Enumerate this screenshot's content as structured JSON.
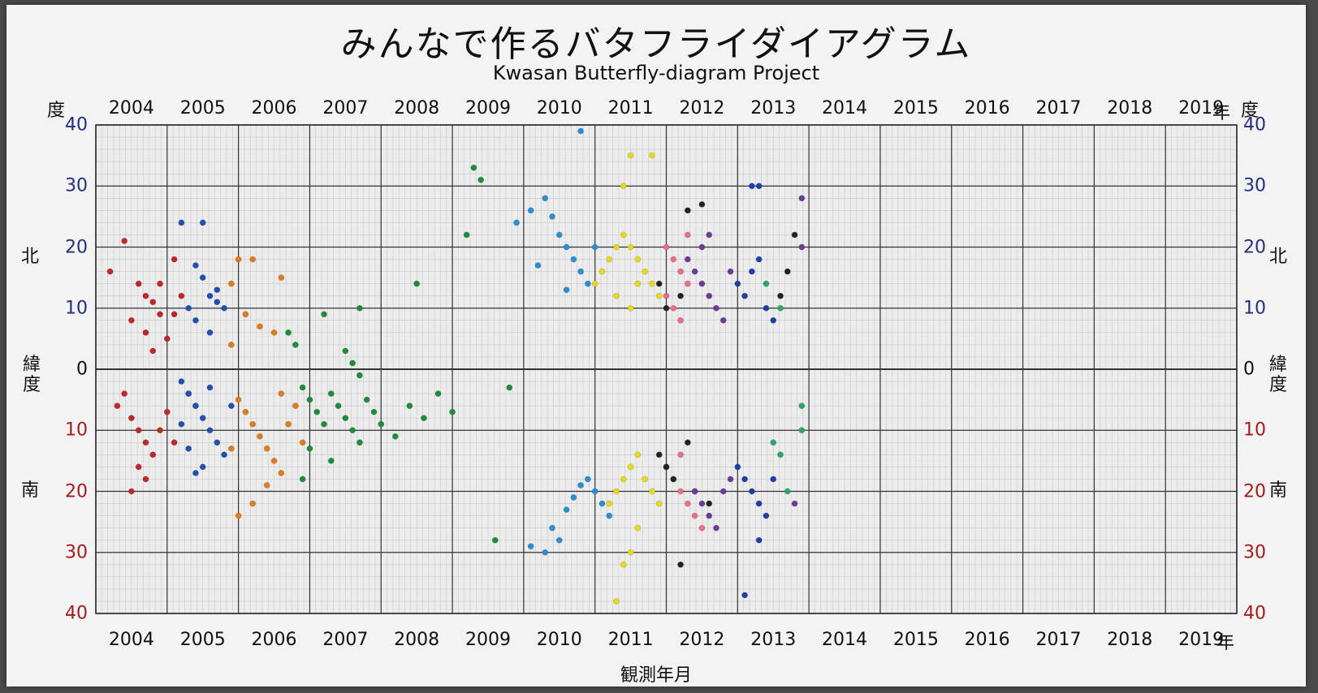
{
  "title_ja": "みんなで作るバタフライダイアグラム",
  "title_en": "Kwasan Butterfly-diagram Project",
  "years": [
    "2004",
    "2005",
    "2006",
    "2007",
    "2008",
    "2009",
    "2010",
    "2011",
    "2012",
    "2013",
    "2014",
    "2015",
    "2016",
    "2017",
    "2018",
    "2019"
  ],
  "year_suffix": "年",
  "lat_ticks": [
    "40",
    "30",
    "20",
    "10",
    "0",
    "10",
    "20",
    "30",
    "40"
  ],
  "labels": {
    "degree": "度",
    "north": "北",
    "south": "南",
    "latitude_1": "緯",
    "latitude_2": "度",
    "xlabel": "観測年月"
  },
  "colors": {
    "board": "#f3f3f3",
    "grid_minor": "#c9c9c9",
    "grid_major": "#333333",
    "north_text": "#25307a",
    "south_text": "#a31c1c"
  },
  "chart_data": {
    "type": "scatter",
    "x_unit": "year (decimal)",
    "y_unit": "solar latitude (degrees, north positive)",
    "xlim": [
      2004,
      2020
    ],
    "ylim": [
      -40,
      40
    ],
    "xlabel": "観測年月",
    "series": [
      {
        "color": "#c0262b",
        "points": [
          [
            2004.2,
            16
          ],
          [
            2004.4,
            21
          ],
          [
            2004.6,
            14
          ],
          [
            2004.7,
            12
          ],
          [
            2004.8,
            11
          ],
          [
            2004.9,
            9
          ],
          [
            2004.5,
            8
          ],
          [
            2004.7,
            6
          ],
          [
            2005.0,
            5
          ],
          [
            2005.1,
            9
          ],
          [
            2004.3,
            -6
          ],
          [
            2004.5,
            -8
          ],
          [
            2004.6,
            -10
          ],
          [
            2004.7,
            -12
          ],
          [
            2004.8,
            -14
          ],
          [
            2004.6,
            -16
          ],
          [
            2004.7,
            -18
          ],
          [
            2004.5,
            -20
          ],
          [
            2004.9,
            -10
          ],
          [
            2005.0,
            -7
          ],
          [
            2005.1,
            -12
          ],
          [
            2004.4,
            -4
          ],
          [
            2004.9,
            14
          ],
          [
            2005.1,
            18
          ],
          [
            2005.2,
            12
          ],
          [
            2004.8,
            3
          ],
          [
            2005.3,
            -4
          ],
          [
            2005.4,
            -6
          ]
        ]
      },
      {
        "color": "#2150b0",
        "points": [
          [
            2005.2,
            24
          ],
          [
            2005.5,
            24
          ],
          [
            2005.4,
            17
          ],
          [
            2005.5,
            15
          ],
          [
            2005.6,
            12
          ],
          [
            2005.7,
            11
          ],
          [
            2005.8,
            10
          ],
          [
            2005.3,
            10
          ],
          [
            2005.4,
            8
          ],
          [
            2005.6,
            6
          ],
          [
            2005.7,
            13
          ],
          [
            2005.2,
            -2
          ],
          [
            2005.3,
            -4
          ],
          [
            2005.4,
            -6
          ],
          [
            2005.5,
            -8
          ],
          [
            2005.6,
            -10
          ],
          [
            2005.7,
            -12
          ],
          [
            2005.8,
            -14
          ],
          [
            2005.5,
            -16
          ],
          [
            2005.2,
            -9
          ],
          [
            2005.9,
            -6
          ],
          [
            2005.3,
            -13
          ],
          [
            2005.6,
            -3
          ],
          [
            2005.4,
            -17
          ]
        ]
      },
      {
        "color": "#e07c1c",
        "points": [
          [
            2006.0,
            18
          ],
          [
            2006.2,
            18
          ],
          [
            2005.9,
            14
          ],
          [
            2006.1,
            9
          ],
          [
            2006.3,
            7
          ],
          [
            2006.5,
            6
          ],
          [
            2006.6,
            15
          ],
          [
            2005.9,
            4
          ],
          [
            2006.0,
            -5
          ],
          [
            2006.1,
            -7
          ],
          [
            2006.2,
            -9
          ],
          [
            2006.3,
            -11
          ],
          [
            2006.4,
            -13
          ],
          [
            2006.5,
            -15
          ],
          [
            2006.6,
            -17
          ],
          [
            2006.2,
            -22
          ],
          [
            2006.0,
            -24
          ],
          [
            2006.7,
            -9
          ],
          [
            2006.8,
            -6
          ],
          [
            2006.9,
            -12
          ],
          [
            2006.4,
            -19
          ],
          [
            2005.9,
            -13
          ],
          [
            2006.6,
            -4
          ]
        ]
      },
      {
        "color": "#1e8c3a",
        "points": [
          [
            2006.7,
            6
          ],
          [
            2006.8,
            4
          ],
          [
            2007.2,
            9
          ],
          [
            2007.5,
            3
          ],
          [
            2007.7,
            10
          ],
          [
            2008.5,
            14
          ],
          [
            2009.3,
            33
          ],
          [
            2009.4,
            31
          ],
          [
            2009.2,
            22
          ],
          [
            2006.9,
            -3
          ],
          [
            2007.0,
            -5
          ],
          [
            2007.1,
            -7
          ],
          [
            2007.2,
            -9
          ],
          [
            2007.3,
            -4
          ],
          [
            2007.4,
            -6
          ],
          [
            2007.5,
            -8
          ],
          [
            2007.6,
            -10
          ],
          [
            2007.7,
            -12
          ],
          [
            2007.8,
            -5
          ],
          [
            2007.9,
            -7
          ],
          [
            2008.0,
            -9
          ],
          [
            2008.2,
            -11
          ],
          [
            2008.4,
            -6
          ],
          [
            2008.6,
            -8
          ],
          [
            2008.8,
            -4
          ],
          [
            2009.0,
            -7
          ],
          [
            2007.3,
            -15
          ],
          [
            2007.0,
            -13
          ],
          [
            2006.9,
            -18
          ],
          [
            2009.6,
            -28
          ],
          [
            2009.8,
            -3
          ],
          [
            2007.6,
            1
          ],
          [
            2007.7,
            -1
          ]
        ]
      },
      {
        "color": "#2b8fd0",
        "points": [
          [
            2009.9,
            24
          ],
          [
            2010.1,
            26
          ],
          [
            2010.3,
            28
          ],
          [
            2010.4,
            25
          ],
          [
            2010.5,
            22
          ],
          [
            2010.6,
            20
          ],
          [
            2010.7,
            18
          ],
          [
            2010.8,
            16
          ],
          [
            2010.9,
            14
          ],
          [
            2011.0,
            20
          ],
          [
            2010.2,
            17
          ],
          [
            2010.6,
            13
          ],
          [
            2010.8,
            39
          ],
          [
            2010.4,
            -26
          ],
          [
            2010.6,
            -23
          ],
          [
            2010.7,
            -21
          ],
          [
            2010.8,
            -19
          ],
          [
            2010.9,
            -18
          ],
          [
            2011.0,
            -20
          ],
          [
            2011.1,
            -22
          ],
          [
            2011.2,
            -24
          ],
          [
            2010.3,
            -30
          ],
          [
            2010.1,
            -29
          ],
          [
            2010.5,
            -28
          ]
        ]
      },
      {
        "color": "#e8d81a",
        "points": [
          [
            2011.0,
            14
          ],
          [
            2011.1,
            16
          ],
          [
            2011.2,
            18
          ],
          [
            2011.3,
            20
          ],
          [
            2011.4,
            22
          ],
          [
            2011.5,
            20
          ],
          [
            2011.6,
            18
          ],
          [
            2011.7,
            16
          ],
          [
            2011.8,
            14
          ],
          [
            2011.9,
            12
          ],
          [
            2011.4,
            30
          ],
          [
            2011.5,
            35
          ],
          [
            2011.8,
            35
          ],
          [
            2011.3,
            12
          ],
          [
            2011.5,
            10
          ],
          [
            2011.6,
            14
          ],
          [
            2011.2,
            -22
          ],
          [
            2011.3,
            -20
          ],
          [
            2011.4,
            -18
          ],
          [
            2011.5,
            -16
          ],
          [
            2011.6,
            -14
          ],
          [
            2011.7,
            -18
          ],
          [
            2011.8,
            -20
          ],
          [
            2011.9,
            -22
          ],
          [
            2011.4,
            -32
          ],
          [
            2011.5,
            -30
          ],
          [
            2011.6,
            -26
          ],
          [
            2011.3,
            -38
          ]
        ]
      },
      {
        "color": "#ea6f86",
        "points": [
          [
            2012.0,
            20
          ],
          [
            2012.1,
            18
          ],
          [
            2012.2,
            16
          ],
          [
            2012.3,
            14
          ],
          [
            2012.0,
            12
          ],
          [
            2012.1,
            10
          ],
          [
            2012.2,
            8
          ],
          [
            2012.3,
            22
          ],
          [
            2012.1,
            -18
          ],
          [
            2012.2,
            -20
          ],
          [
            2012.3,
            -22
          ],
          [
            2012.4,
            -24
          ],
          [
            2012.0,
            -16
          ],
          [
            2012.5,
            -26
          ],
          [
            2012.2,
            -14
          ]
        ]
      },
      {
        "color": "#222222",
        "points": [
          [
            2011.9,
            14
          ],
          [
            2012.0,
            10
          ],
          [
            2012.2,
            12
          ],
          [
            2012.3,
            26
          ],
          [
            2012.5,
            27
          ],
          [
            2011.9,
            -14
          ],
          [
            2012.0,
            -16
          ],
          [
            2012.1,
            -18
          ],
          [
            2012.3,
            -12
          ],
          [
            2012.4,
            -20
          ],
          [
            2012.6,
            -22
          ],
          [
            2012.2,
            -32
          ],
          [
            2013.6,
            12
          ],
          [
            2013.7,
            16
          ],
          [
            2013.8,
            22
          ]
        ]
      },
      {
        "color": "#6b3c9c",
        "points": [
          [
            2012.3,
            18
          ],
          [
            2012.4,
            16
          ],
          [
            2012.5,
            14
          ],
          [
            2012.6,
            12
          ],
          [
            2012.7,
            10
          ],
          [
            2012.8,
            8
          ],
          [
            2012.5,
            20
          ],
          [
            2012.6,
            22
          ],
          [
            2012.9,
            16
          ],
          [
            2012.4,
            -20
          ],
          [
            2012.5,
            -22
          ],
          [
            2012.6,
            -24
          ],
          [
            2012.7,
            -26
          ],
          [
            2012.8,
            -20
          ],
          [
            2012.9,
            -18
          ],
          [
            2013.9,
            28
          ],
          [
            2013.9,
            20
          ],
          [
            2013.8,
            -22
          ]
        ]
      },
      {
        "color": "#1c3fa8",
        "points": [
          [
            2013.0,
            14
          ],
          [
            2013.1,
            12
          ],
          [
            2013.2,
            16
          ],
          [
            2013.3,
            18
          ],
          [
            2013.4,
            10
          ],
          [
            2013.5,
            8
          ],
          [
            2013.2,
            30
          ],
          [
            2013.3,
            30
          ],
          [
            2013.0,
            -16
          ],
          [
            2013.1,
            -18
          ],
          [
            2013.2,
            -20
          ],
          [
            2013.3,
            -22
          ],
          [
            2013.4,
            -24
          ],
          [
            2013.5,
            -18
          ],
          [
            2013.3,
            -28
          ],
          [
            2013.1,
            -37
          ]
        ]
      },
      {
        "color": "#2aa86a",
        "points": [
          [
            2013.4,
            14
          ],
          [
            2013.6,
            10
          ],
          [
            2013.5,
            -12
          ],
          [
            2013.6,
            -14
          ],
          [
            2013.9,
            -6
          ],
          [
            2013.9,
            -10
          ],
          [
            2013.7,
            -20
          ]
        ]
      }
    ]
  }
}
